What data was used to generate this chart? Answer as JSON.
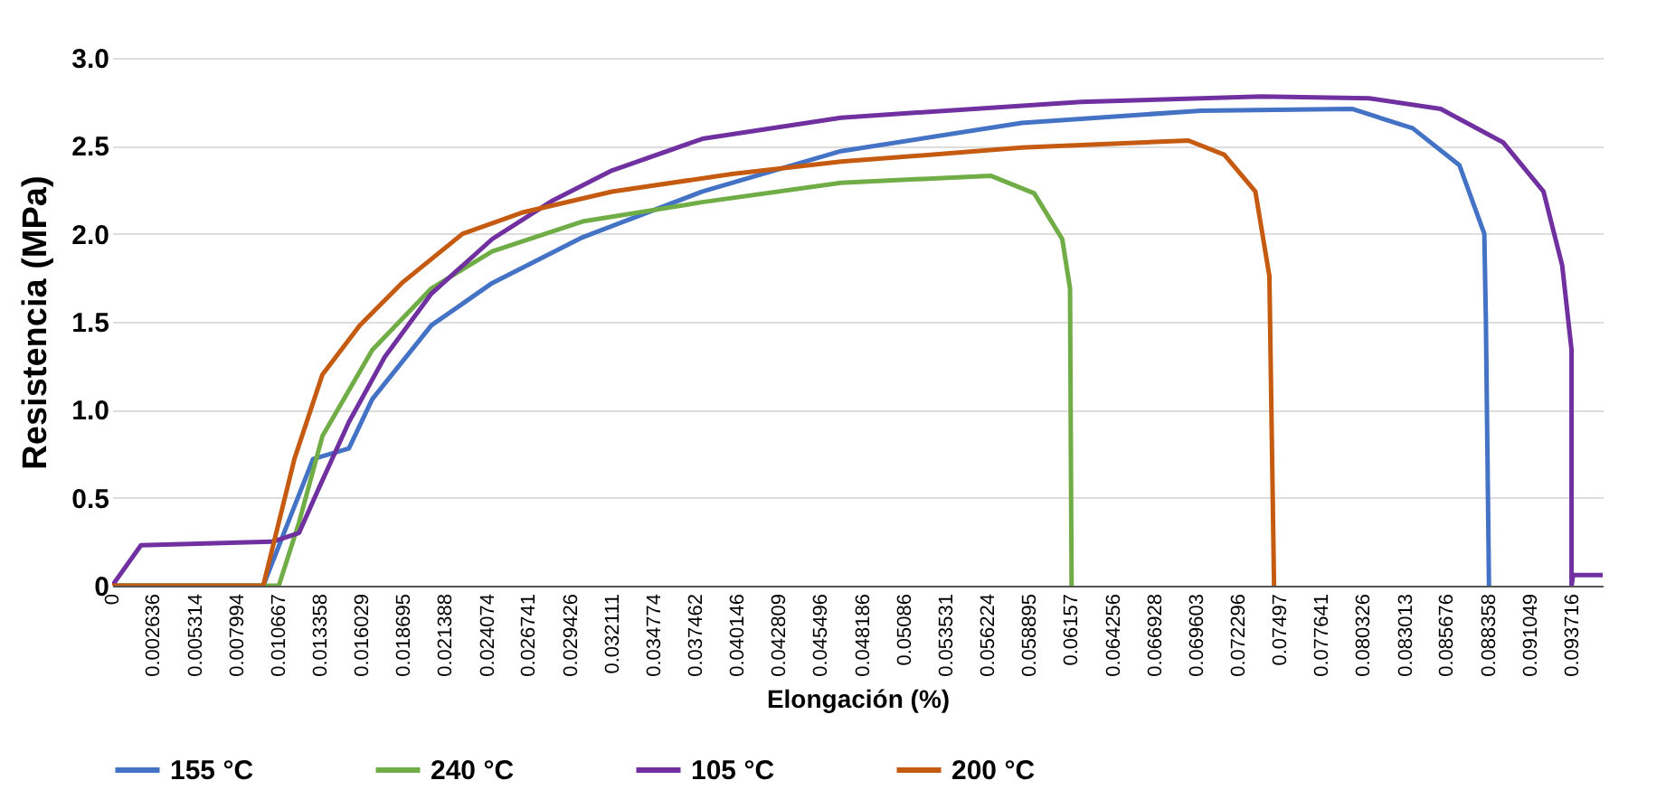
{
  "chart_data": {
    "type": "line",
    "xlabel": "Elongación (%)",
    "ylabel": "Resistencia (MPa)",
    "xlim": [
      0,
      0.0957
    ],
    "ylim": [
      0,
      3
    ],
    "xticks": [
      0,
      0.002636,
      0.005314,
      0.007994,
      0.010667,
      0.013358,
      0.016029,
      0.018695,
      0.021388,
      0.024074,
      0.026741,
      0.029426,
      0.032111,
      0.034774,
      0.037462,
      0.040146,
      0.042809,
      0.045496,
      0.048186,
      0.05086,
      0.053531,
      0.056224,
      0.058895,
      0.06157,
      0.064256,
      0.066928,
      0.069603,
      0.072296,
      0.07497,
      0.077641,
      0.080326,
      0.083013,
      0.085676,
      0.088358,
      0.091049,
      0.093716
    ],
    "yticks": [
      0,
      {
        "value": 0.5,
        "label": "0.5"
      },
      {
        "value": 1,
        "label": "1.0"
      },
      {
        "value": 1.5,
        "label": "1.5"
      },
      {
        "value": 2,
        "label": "2.0"
      },
      {
        "value": 2.5,
        "label": "2.5"
      },
      {
        "value": 3,
        "label": "3.0"
      }
    ],
    "grid": "y",
    "legend": "bottom",
    "marker": "none",
    "line_style": "solid",
    "series": [
      {
        "name": "155 °C",
        "color": "#4472c4",
        "x": [
          0,
          0.0097,
          0.0129,
          0.0152,
          0.0167,
          0.0205,
          0.0244,
          0.0302,
          0.0379,
          0.0468,
          0.0584,
          0.0699,
          0.0796,
          0.0835,
          0.0865,
          0.0881,
          0.0882,
          0.0884
        ],
        "values": [
          0,
          0,
          0.72,
          0.78,
          1.06,
          1.48,
          1.72,
          1.98,
          2.24,
          2.47,
          2.63,
          2.7,
          2.71,
          2.6,
          2.39,
          2.0,
          1.51,
          0
        ]
      },
      {
        "name": "240 °C",
        "color": "#70ad47",
        "x": [
          0,
          0.0107,
          0.012,
          0.0135,
          0.0167,
          0.0205,
          0.0244,
          0.0302,
          0.0379,
          0.0468,
          0.0564,
          0.0592,
          0.061,
          0.0615,
          0.0616
        ],
        "values": [
          0,
          0,
          0.36,
          0.85,
          1.34,
          1.69,
          1.9,
          2.07,
          2.18,
          2.29,
          2.33,
          2.23,
          1.97,
          1.69,
          0
        ]
      },
      {
        "name": "105 °C",
        "color": "#7030a0",
        "x": [
          0,
          0.00185,
          0.0103,
          0.012,
          0.0132,
          0.0152,
          0.0175,
          0.0205,
          0.0244,
          0.0283,
          0.0321,
          0.0379,
          0.0468,
          0.0622,
          0.0738,
          0.0807,
          0.0853,
          0.0893,
          0.0919,
          0.0931,
          0.0937,
          0.0937,
          0.0938,
          0.0957
        ],
        "values": [
          0,
          0.23,
          0.25,
          0.3,
          0.54,
          0.93,
          1.3,
          1.66,
          1.97,
          2.19,
          2.36,
          2.54,
          2.66,
          2.75,
          2.78,
          2.77,
          2.71,
          2.52,
          2.24,
          1.82,
          1.34,
          0,
          0.06,
          0.06
        ]
      },
      {
        "name": "200 °C",
        "color": "#c55a11",
        "x": [
          0,
          0.0097,
          0.0117,
          0.0135,
          0.0159,
          0.0186,
          0.0225,
          0.0263,
          0.0321,
          0.0398,
          0.0468,
          0.0584,
          0.0691,
          0.0714,
          0.0734,
          0.0743,
          0.0746
        ],
        "values": [
          0,
          0,
          0.72,
          1.2,
          1.48,
          1.72,
          2.0,
          2.12,
          2.24,
          2.34,
          2.41,
          2.49,
          2.53,
          2.45,
          2.24,
          1.76,
          0
        ]
      }
    ]
  }
}
